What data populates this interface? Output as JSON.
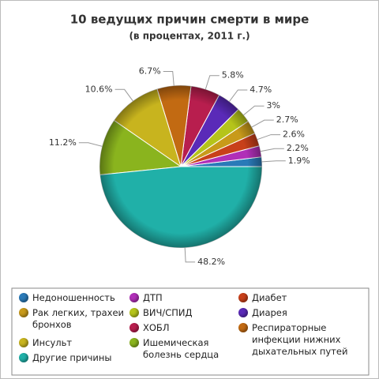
{
  "chart_data": {
    "type": "pie",
    "title": "10 ведущих причин смерти в мире",
    "subtitle": "(в процентах, 2011 г.)",
    "categories": [
      "Недоношенность",
      "ДТП",
      "Диабет",
      "Рак легких, трахеи бронхов",
      "ВИЧ/СПИД",
      "Диарея",
      "ХОБЛ",
      "Респираторные инфекции нижних дыхательных путей",
      "Инсульт",
      "Ишемическая болезнь сердца",
      "Другие причины"
    ],
    "values": [
      1.9,
      2.2,
      2.6,
      2.7,
      3,
      4.7,
      5.8,
      6.7,
      10.6,
      11.2,
      48.2
    ],
    "value_labels": [
      "1.9%",
      "2.2%",
      "2.6%",
      "2.7%",
      "3%",
      "4.7%",
      "5.8%",
      "6.7%",
      "10.6%",
      "11.2%",
      "48.2%"
    ],
    "colors": [
      "#2a7ab8",
      "#b02fb8",
      "#c8401a",
      "#c89a1a",
      "#b5c41a",
      "#5a2ab8",
      "#b81e4e",
      "#c26a12",
      "#c8b41e",
      "#8ab41e",
      "#20b0a8"
    ],
    "legend": "bottom"
  }
}
